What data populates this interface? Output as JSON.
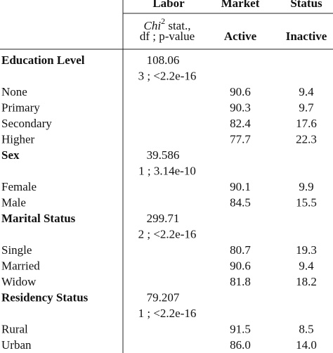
{
  "header": {
    "top": [
      "Labor",
      "Market",
      "Status"
    ],
    "stat_head": {
      "chi": "Chi",
      "sup": "2",
      "rest": " stat.,",
      "line2": "df ; p-value"
    },
    "active": "Active",
    "inactive": "Inactive"
  },
  "groups": [
    {
      "label": "Education Level",
      "stat": "108.06",
      "test": "3 ; <2.2e-16",
      "levels": [
        {
          "label": "None",
          "active": "90.6",
          "inactive": "9.4"
        },
        {
          "label": "Primary",
          "active": "90.3",
          "inactive": "9.7"
        },
        {
          "label": "Secondary",
          "active": "82.4",
          "inactive": "17.6"
        },
        {
          "label": "Higher",
          "active": "77.7",
          "inactive": "22.3"
        }
      ]
    },
    {
      "label": "Sex",
      "stat": "39.586",
      "test": "1 ; 3.14e-10",
      "levels": [
        {
          "label": "Female",
          "active": "90.1",
          "inactive": "9.9"
        },
        {
          "label": "Male",
          "active": "84.5",
          "inactive": "15.5"
        }
      ]
    },
    {
      "label": "Marital Status",
      "stat": "299.71",
      "test": "2 ; <2.2e-16",
      "levels": [
        {
          "label": "Single",
          "active": "80.7",
          "inactive": "19.3"
        },
        {
          "label": "Married",
          "active": "90.6",
          "inactive": "9.4"
        },
        {
          "label": "Widow",
          "active": "81.8",
          "inactive": "18.2"
        }
      ]
    },
    {
      "label": "Residency Status",
      "stat": "79.207",
      "test": "1 ; <2.2e-16",
      "levels": [
        {
          "label": "Rural",
          "active": "91.5",
          "inactive": "8.5"
        },
        {
          "label": "Urban",
          "active": "86.0",
          "inactive": "14.0"
        }
      ]
    }
  ]
}
